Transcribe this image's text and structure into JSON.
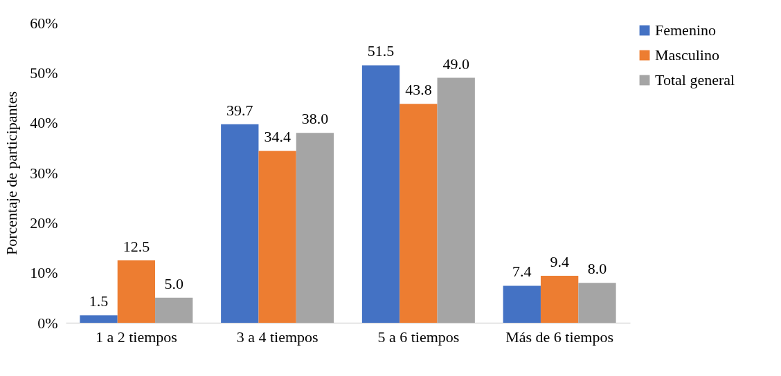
{
  "chart_data": {
    "type": "bar",
    "ylabel": "Porcentaje de participantes",
    "categories": [
      "1 a 2 tiempos",
      "3 a 4 tiempos",
      "5 a 6 tiempos",
      "Más de 6 tiempos"
    ],
    "series": [
      {
        "name": "Femenino",
        "color": "#4472c4",
        "values": [
          1.5,
          39.7,
          51.5,
          7.4
        ],
        "value_labels": [
          "1.5",
          "39.7",
          "51.5",
          "7.4"
        ]
      },
      {
        "name": "Masculino",
        "color": "#ed7d31",
        "values": [
          12.5,
          34.4,
          43.8,
          9.4
        ],
        "value_labels": [
          "12.5",
          "34.4",
          "43.8",
          "9.4"
        ]
      },
      {
        "name": "Total general",
        "color": "#a5a5a5",
        "values": [
          5.0,
          38.0,
          49.0,
          8.0
        ],
        "value_labels": [
          "5.0",
          "38.0",
          "49.0",
          "8.0"
        ]
      }
    ],
    "ylim": [
      0,
      60
    ],
    "yticks": [
      {
        "value": 0,
        "label": "0%"
      },
      {
        "value": 10,
        "label": "10%"
      },
      {
        "value": 20,
        "label": "20%"
      },
      {
        "value": 30,
        "label": "30%"
      },
      {
        "value": 40,
        "label": "40%"
      },
      {
        "value": 50,
        "label": "50%"
      },
      {
        "value": 60,
        "label": "60%"
      }
    ],
    "grid": false,
    "legend": "right"
  }
}
